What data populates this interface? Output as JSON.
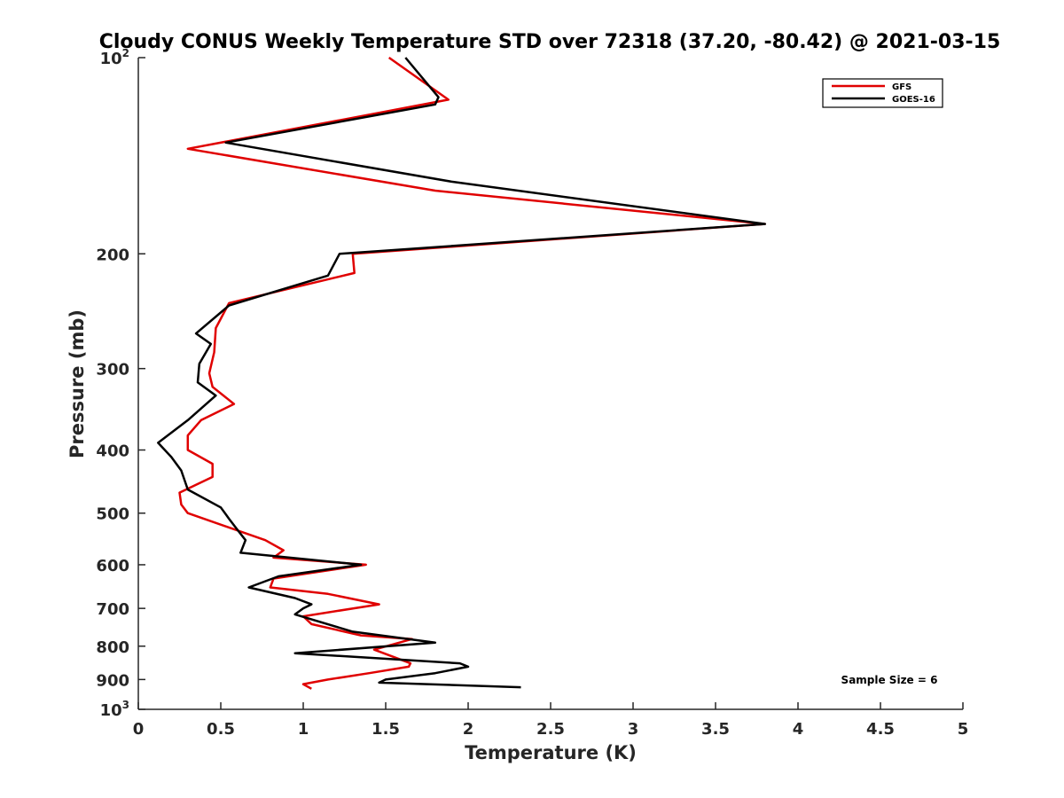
{
  "chart_data": {
    "type": "line",
    "title": "Cloudy CONUS Weekly Temperature STD over 72318 (37.20, -80.42) @ 2021-03-15",
    "xlabel": "Temperature (K)",
    "ylabel": "Pressure (mb)",
    "xlim": [
      0,
      5
    ],
    "ylim": [
      100,
      1000
    ],
    "y_scale": "log",
    "y_reversed": true,
    "grid": false,
    "legend_position": "top-right",
    "x_ticks": [
      0,
      0.5,
      1,
      1.5,
      2,
      2.5,
      3,
      3.5,
      4,
      4.5,
      5
    ],
    "x_tick_labels": [
      "0",
      "0.5",
      "1",
      "1.5",
      "2",
      "2.5",
      "3",
      "3.5",
      "4",
      "4.5",
      "5"
    ],
    "y_ticks": [
      {
        "value": 100,
        "base": "10",
        "exp": "2"
      },
      {
        "value": 200,
        "label": "200"
      },
      {
        "value": 300,
        "label": "300"
      },
      {
        "value": 400,
        "label": "400"
      },
      {
        "value": 500,
        "label": "500"
      },
      {
        "value": 600,
        "label": "600"
      },
      {
        "value": 700,
        "label": "700"
      },
      {
        "value": 800,
        "label": "800"
      },
      {
        "value": 900,
        "label": "900"
      },
      {
        "value": 1000,
        "base": "10",
        "exp": "3"
      }
    ],
    "series": [
      {
        "name": "GFS",
        "color": "#e00000",
        "points": [
          [
            1.52,
            100
          ],
          [
            1.88,
            116
          ],
          [
            1.35,
            123
          ],
          [
            0.3,
            138
          ],
          [
            1.8,
            160
          ],
          [
            3.8,
            180
          ],
          [
            1.3,
            200
          ],
          [
            1.31,
            214
          ],
          [
            0.55,
            238
          ],
          [
            0.47,
            260
          ],
          [
            0.46,
            283
          ],
          [
            0.43,
            305
          ],
          [
            0.45,
            320
          ],
          [
            0.58,
            340
          ],
          [
            0.38,
            360
          ],
          [
            0.3,
            380
          ],
          [
            0.3,
            400
          ],
          [
            0.45,
            420
          ],
          [
            0.45,
            440
          ],
          [
            0.25,
            465
          ],
          [
            0.26,
            485
          ],
          [
            0.3,
            500
          ],
          [
            0.77,
            550
          ],
          [
            0.88,
            570
          ],
          [
            0.82,
            585
          ],
          [
            1.38,
            600
          ],
          [
            0.82,
            630
          ],
          [
            0.8,
            650
          ],
          [
            1.15,
            665
          ],
          [
            1.46,
            690
          ],
          [
            1.0,
            720
          ],
          [
            1.05,
            740
          ],
          [
            1.35,
            770
          ],
          [
            1.66,
            780
          ],
          [
            1.43,
            810
          ],
          [
            1.65,
            850
          ],
          [
            1.64,
            860
          ],
          [
            1.4,
            880
          ],
          [
            1.15,
            900
          ],
          [
            1.0,
            915
          ],
          [
            1.05,
            930
          ]
        ]
      },
      {
        "name": "GOES-16",
        "color": "#000000",
        "points": [
          [
            1.62,
            100
          ],
          [
            1.82,
            115
          ],
          [
            1.8,
            118
          ],
          [
            0.53,
            135
          ],
          [
            1.9,
            155
          ],
          [
            3.8,
            180
          ],
          [
            1.22,
            200
          ],
          [
            1.15,
            216
          ],
          [
            0.55,
            240
          ],
          [
            0.35,
            265
          ],
          [
            0.44,
            275
          ],
          [
            0.37,
            295
          ],
          [
            0.36,
            315
          ],
          [
            0.47,
            330
          ],
          [
            0.3,
            360
          ],
          [
            0.12,
            390
          ],
          [
            0.2,
            410
          ],
          [
            0.26,
            430
          ],
          [
            0.3,
            460
          ],
          [
            0.5,
            490
          ],
          [
            0.55,
            510
          ],
          [
            0.6,
            530
          ],
          [
            0.65,
            550
          ],
          [
            0.62,
            575
          ],
          [
            1.35,
            600
          ],
          [
            0.85,
            625
          ],
          [
            0.67,
            650
          ],
          [
            0.95,
            675
          ],
          [
            1.05,
            690
          ],
          [
            1.0,
            700
          ],
          [
            0.95,
            715
          ],
          [
            1.3,
            760
          ],
          [
            1.8,
            790
          ],
          [
            0.95,
            820
          ],
          [
            1.95,
            850
          ],
          [
            2.0,
            860
          ],
          [
            1.8,
            880
          ],
          [
            1.5,
            900
          ],
          [
            1.46,
            910
          ],
          [
            2.32,
            925
          ]
        ]
      }
    ],
    "annotations": [
      {
        "text": "Sample Size = 6",
        "x": 4.55,
        "y": 900
      }
    ]
  }
}
